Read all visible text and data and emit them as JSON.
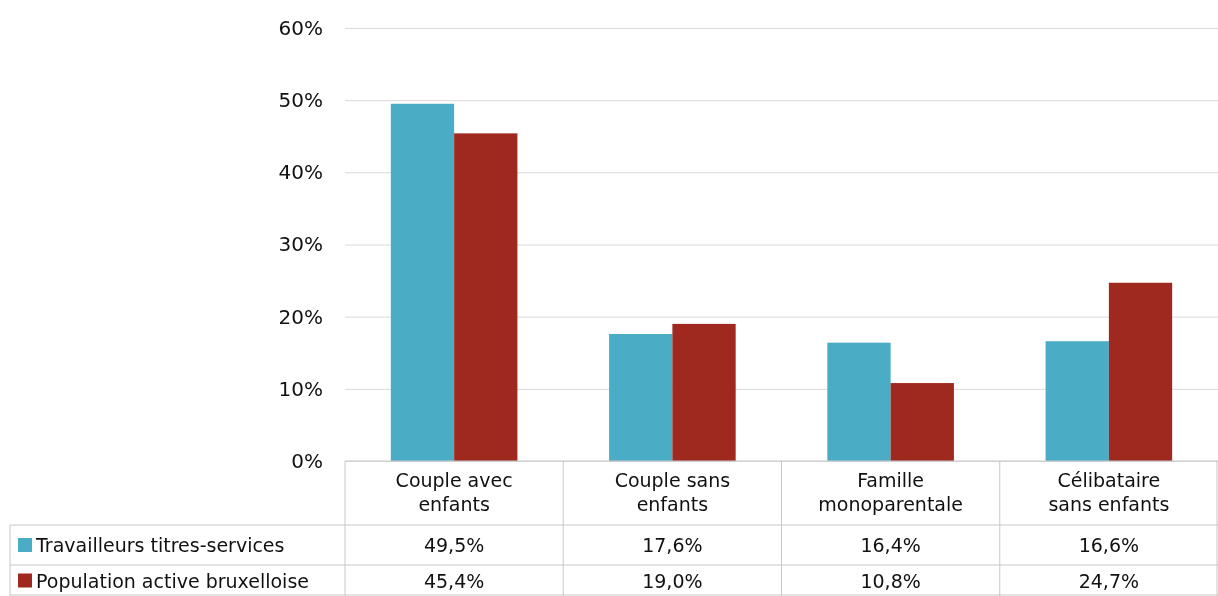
{
  "chart_data": {
    "type": "bar",
    "categories": [
      "Couple avec enfants",
      "Couple sans enfants",
      "Famille monoparentale",
      "Célibataire sans enfants"
    ],
    "series": [
      {
        "name": "Travailleurs titres-services",
        "color": "#4bacc6",
        "values": [
          49.5,
          17.6,
          16.4,
          16.6
        ],
        "value_labels": [
          "49,5%",
          "17,6%",
          "16,4%",
          "16,6%"
        ]
      },
      {
        "name": "Population active bruxelloise",
        "color": "#a0291f",
        "values": [
          45.4,
          19.0,
          10.8,
          24.7
        ],
        "value_labels": [
          "45,4%",
          "19,0%",
          "10,8%",
          "24,7%"
        ]
      }
    ],
    "ylim": [
      0,
      60
    ],
    "yticks": [
      {
        "value": 0,
        "label": "0%"
      },
      {
        "value": 10,
        "label": "10%"
      },
      {
        "value": 20,
        "label": "20%"
      },
      {
        "value": 30,
        "label": "30%"
      },
      {
        "value": 40,
        "label": "40%"
      },
      {
        "value": 50,
        "label": "50%"
      },
      {
        "value": 60,
        "label": "60%"
      }
    ],
    "grid": "y",
    "legend": "bottom"
  }
}
